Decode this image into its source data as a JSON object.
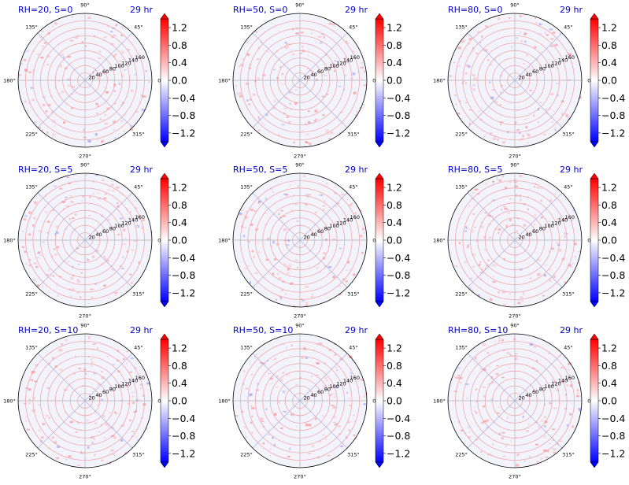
{
  "figure": {
    "time_label": "29 hr",
    "colors": {
      "title": "#0000cc",
      "cmap_low": "#0000ff",
      "cmap_mid": "#ffffff",
      "cmap_high": "#ff0000",
      "grid": "#b0b0b0",
      "ring_tint": "#f0a0a0",
      "spoke_tint": "#b0b0e0",
      "background_tint": "#f3f3fb"
    }
  },
  "chart_data": [
    {
      "type": "heatmap",
      "projection": "polar",
      "title": "RH=20, S=0",
      "subtitle": "29 hr",
      "radial_ticks": [
        20,
        40,
        60,
        80,
        100,
        120,
        140,
        160
      ],
      "angle_ticks": [
        "0°",
        "45°",
        "90°",
        "135°",
        "180°",
        "225°",
        "270°",
        "315°"
      ],
      "rlim": [
        0,
        180
      ],
      "colorbar": {
        "ticks": [
          -1.2,
          -0.8,
          -0.4,
          0.0,
          0.4,
          0.8,
          1.2
        ],
        "range": [
          -1.4,
          1.4
        ],
        "cmap": "bwr",
        "extend": "both"
      }
    },
    {
      "type": "heatmap",
      "projection": "polar",
      "title": "RH=50, S=0",
      "subtitle": "29 hr",
      "radial_ticks": [
        20,
        40,
        60,
        80,
        100,
        120,
        140,
        160
      ],
      "angle_ticks": [
        "0°",
        "45°",
        "90°",
        "135°",
        "180°",
        "225°",
        "270°",
        "315°"
      ],
      "rlim": [
        0,
        180
      ],
      "colorbar": {
        "ticks": [
          -1.2,
          -0.8,
          -0.4,
          0.0,
          0.4,
          0.8,
          1.2
        ],
        "range": [
          -1.4,
          1.4
        ],
        "cmap": "bwr",
        "extend": "both"
      }
    },
    {
      "type": "heatmap",
      "projection": "polar",
      "title": "RH=80, S=0",
      "subtitle": "29 hr",
      "radial_ticks": [
        20,
        40,
        60,
        80,
        100,
        120,
        140,
        160
      ],
      "angle_ticks": [
        "0°",
        "45°",
        "90°",
        "135°",
        "180°",
        "225°",
        "270°",
        "315°"
      ],
      "rlim": [
        0,
        180
      ],
      "colorbar": {
        "ticks": [
          -1.2,
          -0.8,
          -0.4,
          0.0,
          0.4,
          0.8,
          1.2
        ],
        "range": [
          -1.4,
          1.4
        ],
        "cmap": "bwr",
        "extend": "both"
      }
    },
    {
      "type": "heatmap",
      "projection": "polar",
      "title": "RH=20, S=5",
      "subtitle": "29 hr",
      "radial_ticks": [
        20,
        40,
        60,
        80,
        100,
        120,
        140,
        160
      ],
      "angle_ticks": [
        "0°",
        "45°",
        "90°",
        "135°",
        "180°",
        "225°",
        "270°",
        "315°"
      ],
      "rlim": [
        0,
        180
      ],
      "colorbar": {
        "ticks": [
          -1.2,
          -0.8,
          -0.4,
          0.0,
          0.4,
          0.8,
          1.2
        ],
        "range": [
          -1.4,
          1.4
        ],
        "cmap": "bwr",
        "extend": "both"
      }
    },
    {
      "type": "heatmap",
      "projection": "polar",
      "title": "RH=50, S=5",
      "subtitle": "29 hr",
      "radial_ticks": [
        20,
        40,
        60,
        80,
        100,
        120,
        140,
        160
      ],
      "angle_ticks": [
        "0°",
        "45°",
        "90°",
        "135°",
        "180°",
        "225°",
        "270°",
        "315°"
      ],
      "rlim": [
        0,
        180
      ],
      "colorbar": {
        "ticks": [
          -1.2,
          -0.8,
          -0.4,
          0.0,
          0.4,
          0.8,
          1.2
        ],
        "range": [
          -1.4,
          1.4
        ],
        "cmap": "bwr",
        "extend": "both"
      }
    },
    {
      "type": "heatmap",
      "projection": "polar",
      "title": "RH=80, S=5",
      "subtitle": "29 hr",
      "radial_ticks": [
        20,
        40,
        60,
        80,
        100,
        120,
        140,
        160
      ],
      "angle_ticks": [
        "0°",
        "45°",
        "90°",
        "135°",
        "180°",
        "225°",
        "270°",
        "315°"
      ],
      "rlim": [
        0,
        180
      ],
      "colorbar": {
        "ticks": [
          -1.2,
          -0.8,
          -0.4,
          0.0,
          0.4,
          0.8,
          1.2
        ],
        "range": [
          -1.4,
          1.4
        ],
        "cmap": "bwr",
        "extend": "both"
      }
    },
    {
      "type": "heatmap",
      "projection": "polar",
      "title": "RH=20, S=10",
      "subtitle": "29 hr",
      "radial_ticks": [
        20,
        40,
        60,
        80,
        100,
        120,
        140,
        160
      ],
      "angle_ticks": [
        "0°",
        "45°",
        "90°",
        "135°",
        "180°",
        "225°",
        "270°",
        "315°"
      ],
      "rlim": [
        0,
        180
      ],
      "colorbar": {
        "ticks": [
          -1.2,
          -0.8,
          -0.4,
          0.0,
          0.4,
          0.8,
          1.2
        ],
        "range": [
          -1.4,
          1.4
        ],
        "cmap": "bwr",
        "extend": "both"
      }
    },
    {
      "type": "heatmap",
      "projection": "polar",
      "title": "RH=50, S=10",
      "subtitle": "29 hr",
      "radial_ticks": [
        20,
        40,
        60,
        80,
        100,
        120,
        140,
        160
      ],
      "angle_ticks": [
        "0°",
        "45°",
        "90°",
        "135°",
        "180°",
        "225°",
        "270°",
        "315°"
      ],
      "rlim": [
        0,
        180
      ],
      "colorbar": {
        "ticks": [
          -1.2,
          -0.8,
          -0.4,
          0.0,
          0.4,
          0.8,
          1.2
        ],
        "range": [
          -1.4,
          1.4
        ],
        "cmap": "bwr",
        "extend": "both"
      }
    },
    {
      "type": "heatmap",
      "projection": "polar",
      "title": "RH=80, S=10",
      "subtitle": "29 hr",
      "radial_ticks": [
        20,
        40,
        60,
        80,
        100,
        120,
        140,
        160
      ],
      "angle_ticks": [
        "0°",
        "45°",
        "90°",
        "135°",
        "180°",
        "225°",
        "270°",
        "315°"
      ],
      "rlim": [
        0,
        180
      ],
      "colorbar": {
        "ticks": [
          -1.2,
          -0.8,
          -0.4,
          0.0,
          0.4,
          0.8,
          1.2
        ],
        "range": [
          -1.4,
          1.4
        ],
        "cmap": "bwr",
        "extend": "both"
      }
    }
  ]
}
